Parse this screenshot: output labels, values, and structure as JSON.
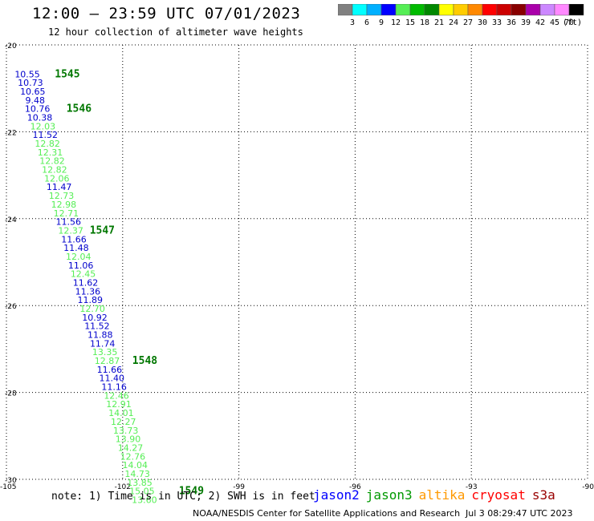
{
  "header": {
    "title": "12:00 — 23:59 UTC 07/01/2023",
    "subtitle": "12 hour collection of altimeter wave heights"
  },
  "colorbar": {
    "colors": [
      "#808080",
      "#00ffff",
      "#00b0ff",
      "#0000ff",
      "#55ee55",
      "#00bb00",
      "#008800",
      "#ffff00",
      "#ffcc00",
      "#ff8800",
      "#ff0000",
      "#cc0000",
      "#880000",
      "#aa00aa",
      "#cc88ff",
      "#ff88ff",
      "#000000"
    ],
    "labels": [
      "3",
      "6",
      "9",
      "12",
      "15",
      "18",
      "21",
      "24",
      "27",
      "30",
      "33",
      "36",
      "39",
      "42",
      "45",
      "70"
    ],
    "unit": "(ft)"
  },
  "chart_data": {
    "type": "scatter",
    "title": "12:00 — 23:59 UTC 07/01/2023",
    "subtitle": "12 hour collection of altimeter wave heights",
    "xlim": [
      -105,
      -90
    ],
    "ylim": [
      -30,
      -20
    ],
    "xticks": [
      -105,
      -102,
      -99,
      -96,
      -93,
      -90
    ],
    "yticks": [
      -20,
      -22,
      -24,
      -26,
      -28,
      -30
    ],
    "grid": true,
    "xlabel": "",
    "ylabel": "",
    "points": [
      {
        "x": -104.46,
        "y": -20.67,
        "label": "10.55",
        "c": "#0000cc"
      },
      {
        "x": -104.38,
        "y": -20.87,
        "label": "10.73",
        "c": "#0000cc"
      },
      {
        "x": -104.32,
        "y": -21.07,
        "label": "10.65",
        "c": "#0000cc"
      },
      {
        "x": -104.26,
        "y": -21.27,
        "label": "9.48",
        "c": "#0000cc"
      },
      {
        "x": -104.2,
        "y": -21.47,
        "label": "10.76",
        "c": "#0000cc"
      },
      {
        "x": -104.14,
        "y": -21.67,
        "label": "10.38",
        "c": "#0000cc"
      },
      {
        "x": -104.06,
        "y": -21.87,
        "label": "12.03",
        "c": "#55ee55"
      },
      {
        "x": -104.0,
        "y": -22.07,
        "label": "11.52",
        "c": "#0000cc"
      },
      {
        "x": -103.94,
        "y": -22.27,
        "label": "12.82",
        "c": "#55ee55"
      },
      {
        "x": -103.87,
        "y": -22.47,
        "label": "12.31",
        "c": "#55ee55"
      },
      {
        "x": -103.82,
        "y": -22.67,
        "label": "12.82",
        "c": "#55ee55"
      },
      {
        "x": -103.76,
        "y": -22.87,
        "label": "12.82",
        "c": "#55ee55"
      },
      {
        "x": -103.7,
        "y": -23.07,
        "label": "12.06",
        "c": "#55ee55"
      },
      {
        "x": -103.64,
        "y": -23.27,
        "label": "11.47",
        "c": "#0000cc"
      },
      {
        "x": -103.58,
        "y": -23.47,
        "label": "12.73",
        "c": "#55ee55"
      },
      {
        "x": -103.52,
        "y": -23.67,
        "label": "12.98",
        "c": "#55ee55"
      },
      {
        "x": -103.46,
        "y": -23.87,
        "label": "12.71",
        "c": "#55ee55"
      },
      {
        "x": -103.4,
        "y": -24.07,
        "label": "11.56",
        "c": "#0000cc"
      },
      {
        "x": -103.34,
        "y": -24.27,
        "label": "12.37",
        "c": "#55ee55"
      },
      {
        "x": -103.26,
        "y": -24.47,
        "label": "11.66",
        "c": "#0000cc"
      },
      {
        "x": -103.2,
        "y": -24.67,
        "label": "11.48",
        "c": "#0000cc"
      },
      {
        "x": -103.14,
        "y": -24.87,
        "label": "12.04",
        "c": "#55ee55"
      },
      {
        "x": -103.08,
        "y": -25.07,
        "label": "11.06",
        "c": "#0000cc"
      },
      {
        "x": -103.02,
        "y": -25.27,
        "label": "12.45",
        "c": "#55ee55"
      },
      {
        "x": -102.96,
        "y": -25.47,
        "label": "11.62",
        "c": "#0000cc"
      },
      {
        "x": -102.9,
        "y": -25.67,
        "label": "11.36",
        "c": "#0000cc"
      },
      {
        "x": -102.84,
        "y": -25.87,
        "label": "11.89",
        "c": "#0000cc"
      },
      {
        "x": -102.78,
        "y": -26.07,
        "label": "12.70",
        "c": "#55ee55"
      },
      {
        "x": -102.72,
        "y": -26.27,
        "label": "10.92",
        "c": "#0000cc"
      },
      {
        "x": -102.66,
        "y": -26.47,
        "label": "11.52",
        "c": "#0000cc"
      },
      {
        "x": -102.58,
        "y": -26.67,
        "label": "11.88",
        "c": "#0000cc"
      },
      {
        "x": -102.52,
        "y": -26.87,
        "label": "11.74",
        "c": "#0000cc"
      },
      {
        "x": -102.46,
        "y": -27.07,
        "label": "13.35",
        "c": "#55ee55"
      },
      {
        "x": -102.4,
        "y": -27.27,
        "label": "12.87",
        "c": "#55ee55"
      },
      {
        "x": -102.34,
        "y": -27.47,
        "label": "11.66",
        "c": "#0000cc"
      },
      {
        "x": -102.28,
        "y": -27.67,
        "label": "11.40",
        "c": "#0000cc"
      },
      {
        "x": -102.22,
        "y": -27.87,
        "label": "11.16",
        "c": "#0000cc"
      },
      {
        "x": -102.16,
        "y": -28.07,
        "label": "12.46",
        "c": "#55ee55"
      },
      {
        "x": -102.1,
        "y": -28.27,
        "label": "12.91",
        "c": "#55ee55"
      },
      {
        "x": -102.04,
        "y": -28.47,
        "label": "14.01",
        "c": "#55ee55"
      },
      {
        "x": -101.98,
        "y": -28.67,
        "label": "12.27",
        "c": "#55ee55"
      },
      {
        "x": -101.92,
        "y": -28.87,
        "label": "13.73",
        "c": "#55ee55"
      },
      {
        "x": -101.86,
        "y": -29.07,
        "label": "13.90",
        "c": "#55ee55"
      },
      {
        "x": -101.8,
        "y": -29.27,
        "label": "14.27",
        "c": "#55ee55"
      },
      {
        "x": -101.74,
        "y": -29.47,
        "label": "12.76",
        "c": "#55ee55"
      },
      {
        "x": -101.68,
        "y": -29.67,
        "label": "14.04",
        "c": "#55ee55"
      },
      {
        "x": -101.62,
        "y": -29.87,
        "label": "14.73",
        "c": "#55ee55"
      },
      {
        "x": -101.56,
        "y": -30.07,
        "label": "13.85",
        "c": "#55ee55"
      },
      {
        "x": -101.5,
        "y": -30.27,
        "label": "15.05",
        "c": "#55ee55"
      },
      {
        "x": -101.44,
        "y": -30.47,
        "label": "13.60",
        "c": "#55ee55"
      }
    ],
    "passes": [
      {
        "x": -104.0,
        "y": -20.67,
        "label": "1545"
      },
      {
        "x": -103.7,
        "y": -21.47,
        "label": "1546"
      },
      {
        "x": -103.1,
        "y": -24.27,
        "label": "1547"
      },
      {
        "x": -102.0,
        "y": -27.27,
        "label": "1548"
      },
      {
        "x": -100.8,
        "y": -30.27,
        "label": "1549"
      }
    ]
  },
  "footer": {
    "note": "note: 1) Time is in UTC; 2) SWH is in feet",
    "satellites": [
      {
        "name": "jason2",
        "color": "#0000ff"
      },
      {
        "name": "jason3",
        "color": "#009900"
      },
      {
        "name": "altika",
        "color": "#ff9900"
      },
      {
        "name": "cryosat",
        "color": "#ff0000"
      },
      {
        "name": "s3a",
        "color": "#990000"
      }
    ],
    "credit": "NOAA/NESDIS Center for Satellite Applications and Research",
    "timestamp": "Jul  3 08:29:47 UTC 2023"
  }
}
